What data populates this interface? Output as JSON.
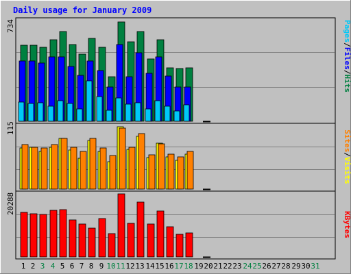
{
  "chart_data": {
    "type": "bar",
    "title": "Daily usage for January 2009",
    "days": [
      "1",
      "2",
      "3",
      "4",
      "5",
      "6",
      "7",
      "8",
      "9",
      "10",
      "11",
      "12",
      "13",
      "14",
      "15",
      "16",
      "17",
      "18",
      "19",
      "20",
      "21",
      "22",
      "23",
      "24",
      "25",
      "26",
      "27",
      "28",
      "29",
      "30",
      "31"
    ],
    "weekend_days": [
      3,
      4,
      10,
      11,
      17,
      18,
      24,
      25,
      31
    ],
    "panels": [
      {
        "id": "hits",
        "max_label": "734",
        "ymax": 734,
        "legend": [
          {
            "name": "Pages",
            "color": "#00c8f8"
          },
          {
            "name": "/",
            "color": "#000000"
          },
          {
            "name": "Files",
            "color": "#0000ff"
          },
          {
            "name": "/",
            "color": "#000000"
          },
          {
            "name": "Hits",
            "color": "#008040"
          }
        ],
        "series": [
          {
            "name": "Hits",
            "color": "#008040",
            "values": [
              545,
              545,
              530,
              580,
              643,
              548,
              478,
              590,
              528,
              318,
              710,
              570,
              640,
              447,
              583,
              382,
              378,
              382
            ]
          },
          {
            "name": "Files",
            "color": "#0000ff",
            "values": [
              430,
              430,
              415,
              460,
              458,
              390,
              330,
              433,
              360,
              245,
              550,
              318,
              488,
              343,
              460,
              323,
              245,
              245
            ]
          },
          {
            "name": "Pages",
            "color": "#00c8f8",
            "values": [
              135,
              125,
              130,
              108,
              148,
              128,
              90,
              290,
              175,
              80,
              165,
              122,
              130,
              90,
              148,
              110,
              75,
              115
            ]
          }
        ]
      },
      {
        "id": "visits",
        "max_label": "115",
        "ymax": 115,
        "legend": [
          {
            "name": "Sites",
            "color": "#ff8000"
          },
          {
            "name": "/",
            "color": "#000000"
          },
          {
            "name": "Visits",
            "color": "#ffff00"
          }
        ],
        "series": [
          {
            "name": "Visits",
            "color": "#ffff00",
            "values": [
              74,
              75,
              68,
              76,
              92,
              70,
              56,
              88,
              68,
              50,
              112,
              72,
              95,
              57,
              83,
              58,
              52,
              63
            ]
          },
          {
            "name": "Sites",
            "color": "#ff8000",
            "values": [
              80,
              76,
              74,
              80,
              92,
              76,
              68,
              92,
              74,
              61,
              110,
              76,
              100,
              62,
              81,
              63,
              58,
              68
            ]
          }
        ]
      },
      {
        "id": "kbytes",
        "max_label": "20288",
        "ymax": 20288,
        "legend": [
          {
            "name": "KBytes",
            "color": "#ff0000"
          }
        ],
        "series": [
          {
            "name": "KBytes",
            "color": "#ff0000",
            "values": [
              14300,
              13900,
              13600,
              15000,
              15300,
              11800,
              10500,
              9300,
              12300,
              7500,
              20288,
              10800,
              17700,
              10600,
              14700,
              9800,
              7300,
              7700
            ]
          }
        ]
      }
    ]
  }
}
